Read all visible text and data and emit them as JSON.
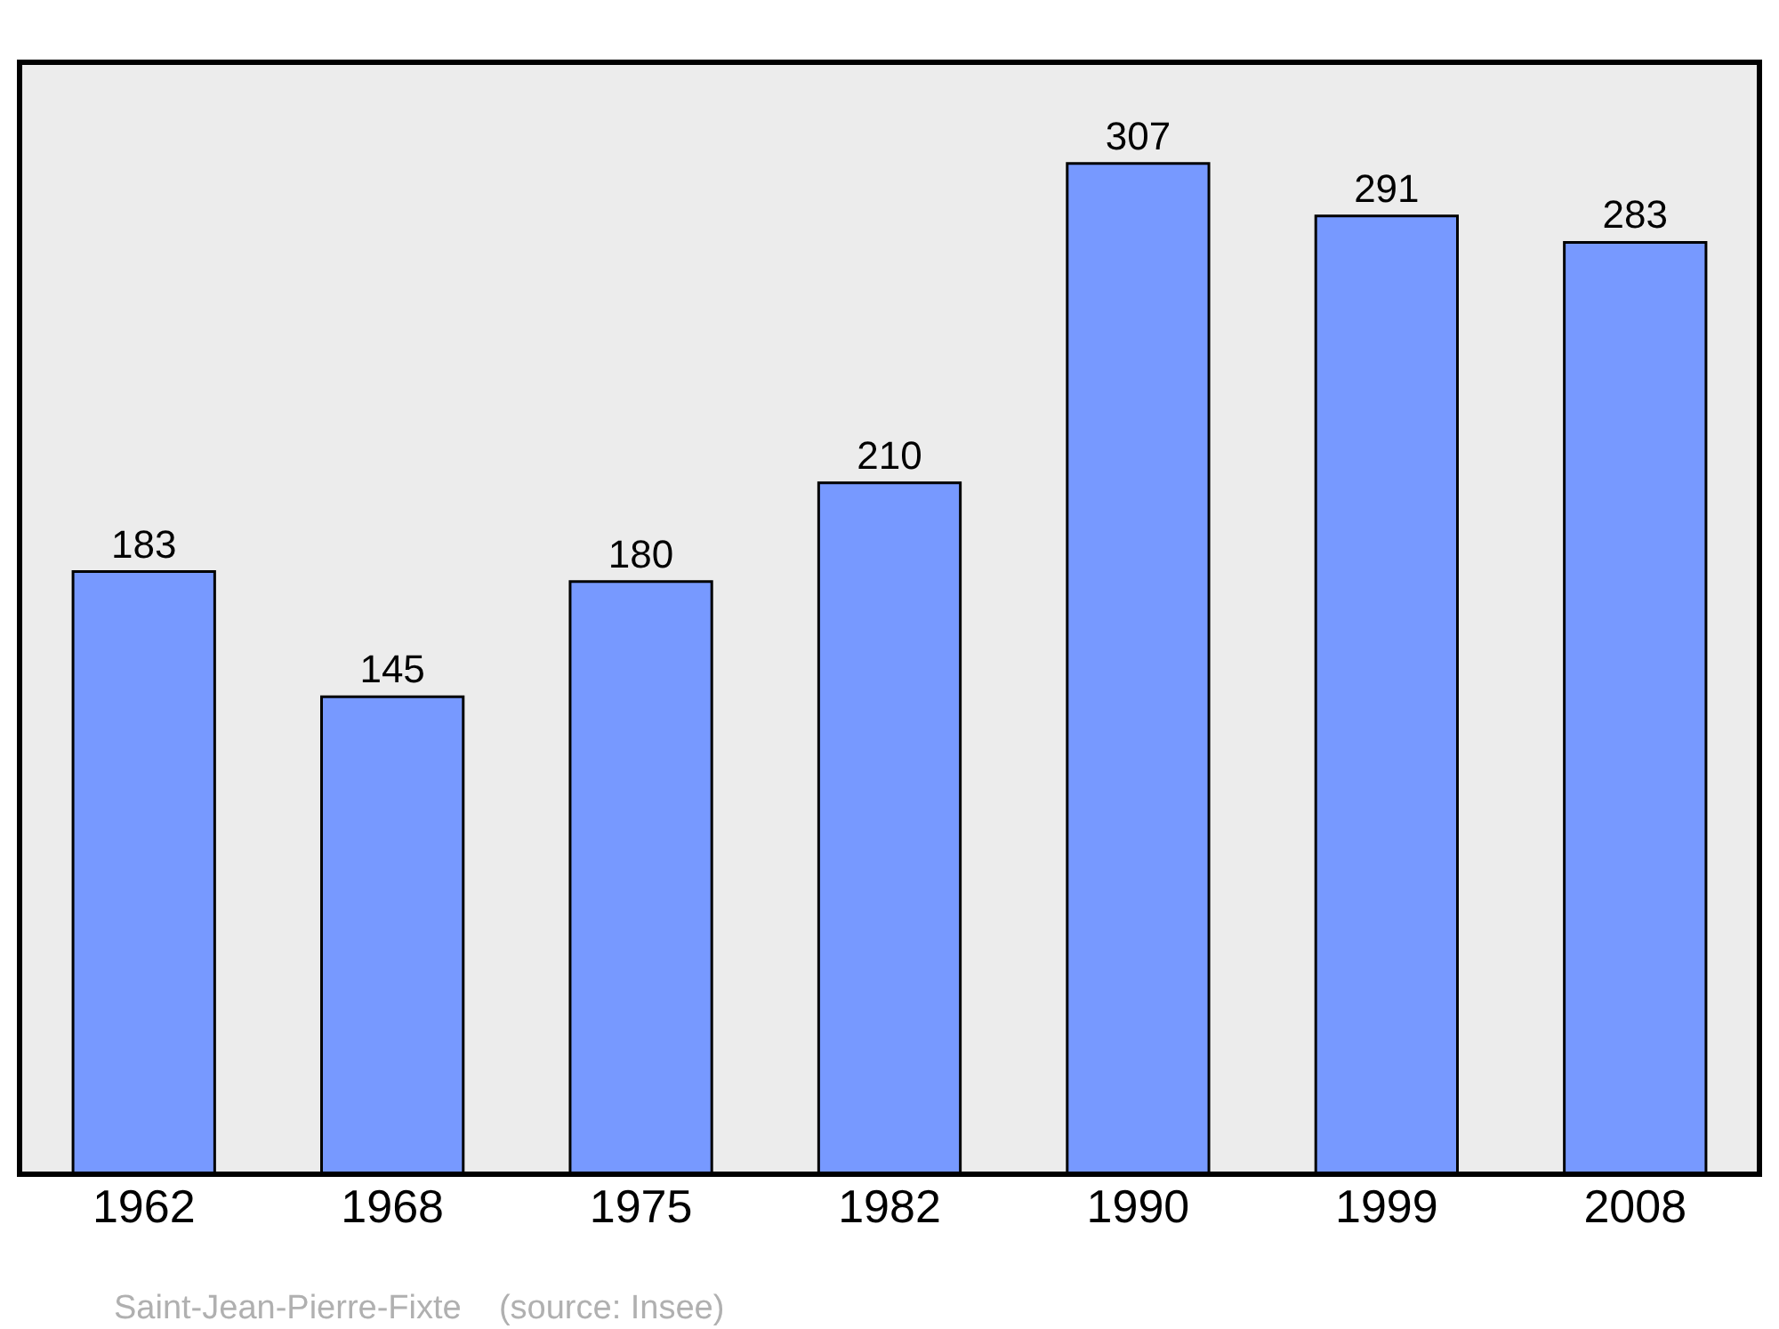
{
  "chart_data": {
    "type": "bar",
    "categories": [
      "1962",
      "1968",
      "1975",
      "1982",
      "1990",
      "1999",
      "2008"
    ],
    "values": [
      183,
      145,
      180,
      210,
      307,
      291,
      283
    ],
    "color": "#7799ff",
    "data_labels": true,
    "annotations": [
      "Saint-Jean-Pierre-Fixte    (source: Insee)"
    ]
  }
}
